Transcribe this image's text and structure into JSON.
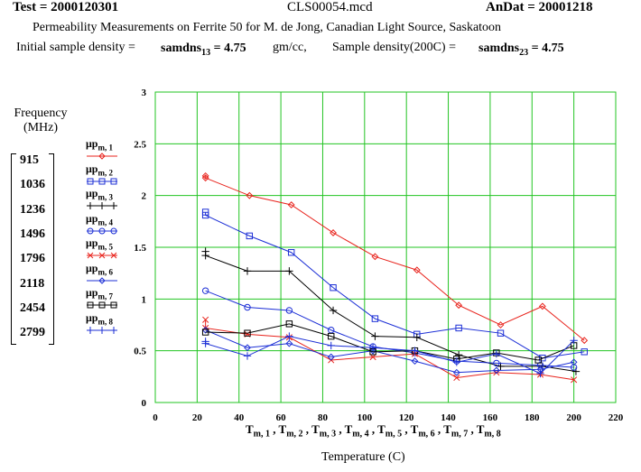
{
  "header": {
    "test_label": "Test = 2000120301",
    "file_name": "CLS00054.mcd",
    "andat_label": "AnDat = 20001218",
    "description": "Permeability Measurements on  Ferrite 50 for M. de Jong, Canadian Light Source, Saskatoon",
    "initial_density_label": "Initial sample density =",
    "initial_density_var": "samdns",
    "initial_density_sub": "13",
    "initial_density_value": "= 4.75",
    "initial_density_unit": "gm/cc,",
    "sample_density_label": "Sample density(200C) =",
    "sample_density_var": "samdns",
    "sample_density_sub": "23",
    "sample_density_value": "= 4.75"
  },
  "frequency_panel": {
    "title_line1": "Frequency",
    "title_line2": "(MHz)",
    "values": [
      "915",
      "1036",
      "1236",
      "1496",
      "1796",
      "2118",
      "2454",
      "2799"
    ]
  },
  "legend": [
    {
      "label": "μp",
      "sub": "m, 1",
      "color": "#e8231c",
      "marker": "diamond"
    },
    {
      "label": "μp",
      "sub": "m, 2",
      "color": "#1c2fd6",
      "marker": "square"
    },
    {
      "label": "μp",
      "sub": "m, 3",
      "color": "#000000",
      "marker": "plus"
    },
    {
      "label": "μp",
      "sub": "m, 4",
      "color": "#1c2fd6",
      "marker": "circle"
    },
    {
      "label": "μp",
      "sub": "m, 5",
      "color": "#e8231c",
      "marker": "x"
    },
    {
      "label": "μp",
      "sub": "m, 6",
      "color": "#1c2fd6",
      "marker": "diamond"
    },
    {
      "label": "μp",
      "sub": "m, 7",
      "color": "#000000",
      "marker": "square"
    },
    {
      "label": "μp",
      "sub": "m, 8",
      "color": "#1c2fd6",
      "marker": "plus"
    }
  ],
  "chart_data": {
    "type": "line",
    "title": "",
    "xlabel": "Temperature (C)",
    "x_axis_expression": "Tm, 1 , Tm, 2 , Tm, 3 , Tm, 4 , Tm, 5 , Tm, 6 , Tm, 7 , Tm, 8",
    "ylabel": "",
    "xlim": [
      0,
      220
    ],
    "ylim": [
      0,
      3
    ],
    "xticks": [
      0,
      20,
      40,
      60,
      80,
      100,
      120,
      140,
      160,
      180,
      200,
      220
    ],
    "yticks": [
      0,
      0.5,
      1,
      1.5,
      2,
      2.5,
      3
    ],
    "grid": true,
    "grid_color": "#22c422",
    "series": [
      {
        "name": "μp m, 1",
        "color": "#e8231c",
        "marker": "diamond",
        "x": [
          24,
          24,
          45,
          65,
          85,
          105,
          125,
          145,
          165,
          185,
          205
        ],
        "y": [
          2.19,
          2.17,
          2.0,
          1.91,
          1.64,
          1.41,
          1.28,
          0.94,
          0.75,
          0.93,
          0.6
        ]
      },
      {
        "name": "μp m, 2",
        "color": "#1c2fd6",
        "marker": "square",
        "x": [
          24,
          24,
          45,
          65,
          85,
          105,
          125,
          145,
          165,
          185,
          205
        ],
        "y": [
          1.84,
          1.81,
          1.61,
          1.45,
          1.11,
          0.81,
          0.66,
          0.72,
          0.67,
          0.43,
          0.49
        ]
      },
      {
        "name": "μp m, 3",
        "color": "#000000",
        "marker": "plus",
        "x": [
          24,
          24,
          44,
          64,
          85,
          105,
          125,
          145,
          165,
          185,
          201
        ],
        "y": [
          1.46,
          1.42,
          1.27,
          1.27,
          0.89,
          0.64,
          0.63,
          0.46,
          0.35,
          0.35,
          0.3
        ]
      },
      {
        "name": "μp m, 4",
        "color": "#1c2fd6",
        "marker": "circle",
        "x": [
          24,
          44,
          64,
          84,
          104,
          124,
          144,
          163,
          184,
          200
        ],
        "y": [
          1.08,
          0.92,
          0.89,
          0.7,
          0.54,
          0.48,
          0.4,
          0.38,
          0.36,
          0.34
        ]
      },
      {
        "name": "μp m, 5",
        "color": "#e8231c",
        "marker": "x",
        "x": [
          24,
          24,
          44,
          64,
          84,
          104,
          124,
          144,
          163,
          184,
          200
        ],
        "y": [
          0.8,
          0.72,
          0.66,
          0.63,
          0.41,
          0.44,
          0.47,
          0.24,
          0.29,
          0.27,
          0.22
        ]
      },
      {
        "name": "μp m, 6",
        "color": "#1c2fd6",
        "marker": "diamond",
        "x": [
          24,
          44,
          64,
          84,
          104,
          124,
          144,
          163,
          184,
          200
        ],
        "y": [
          0.7,
          0.53,
          0.57,
          0.44,
          0.5,
          0.4,
          0.29,
          0.31,
          0.32,
          0.39
        ]
      },
      {
        "name": "μp m, 7",
        "color": "#000000",
        "marker": "square",
        "x": [
          24,
          44,
          64,
          84,
          104,
          124,
          144,
          163,
          183,
          200
        ],
        "y": [
          0.68,
          0.67,
          0.76,
          0.64,
          0.49,
          0.5,
          0.42,
          0.48,
          0.41,
          0.55
        ]
      },
      {
        "name": "μp m, 8",
        "color": "#1c2fd6",
        "marker": "plus",
        "x": [
          24,
          24,
          44,
          64,
          84,
          104,
          124,
          144,
          163,
          184,
          200
        ],
        "y": [
          0.59,
          0.57,
          0.45,
          0.64,
          0.55,
          0.53,
          0.5,
          0.39,
          0.47,
          0.28,
          0.6
        ]
      }
    ]
  }
}
